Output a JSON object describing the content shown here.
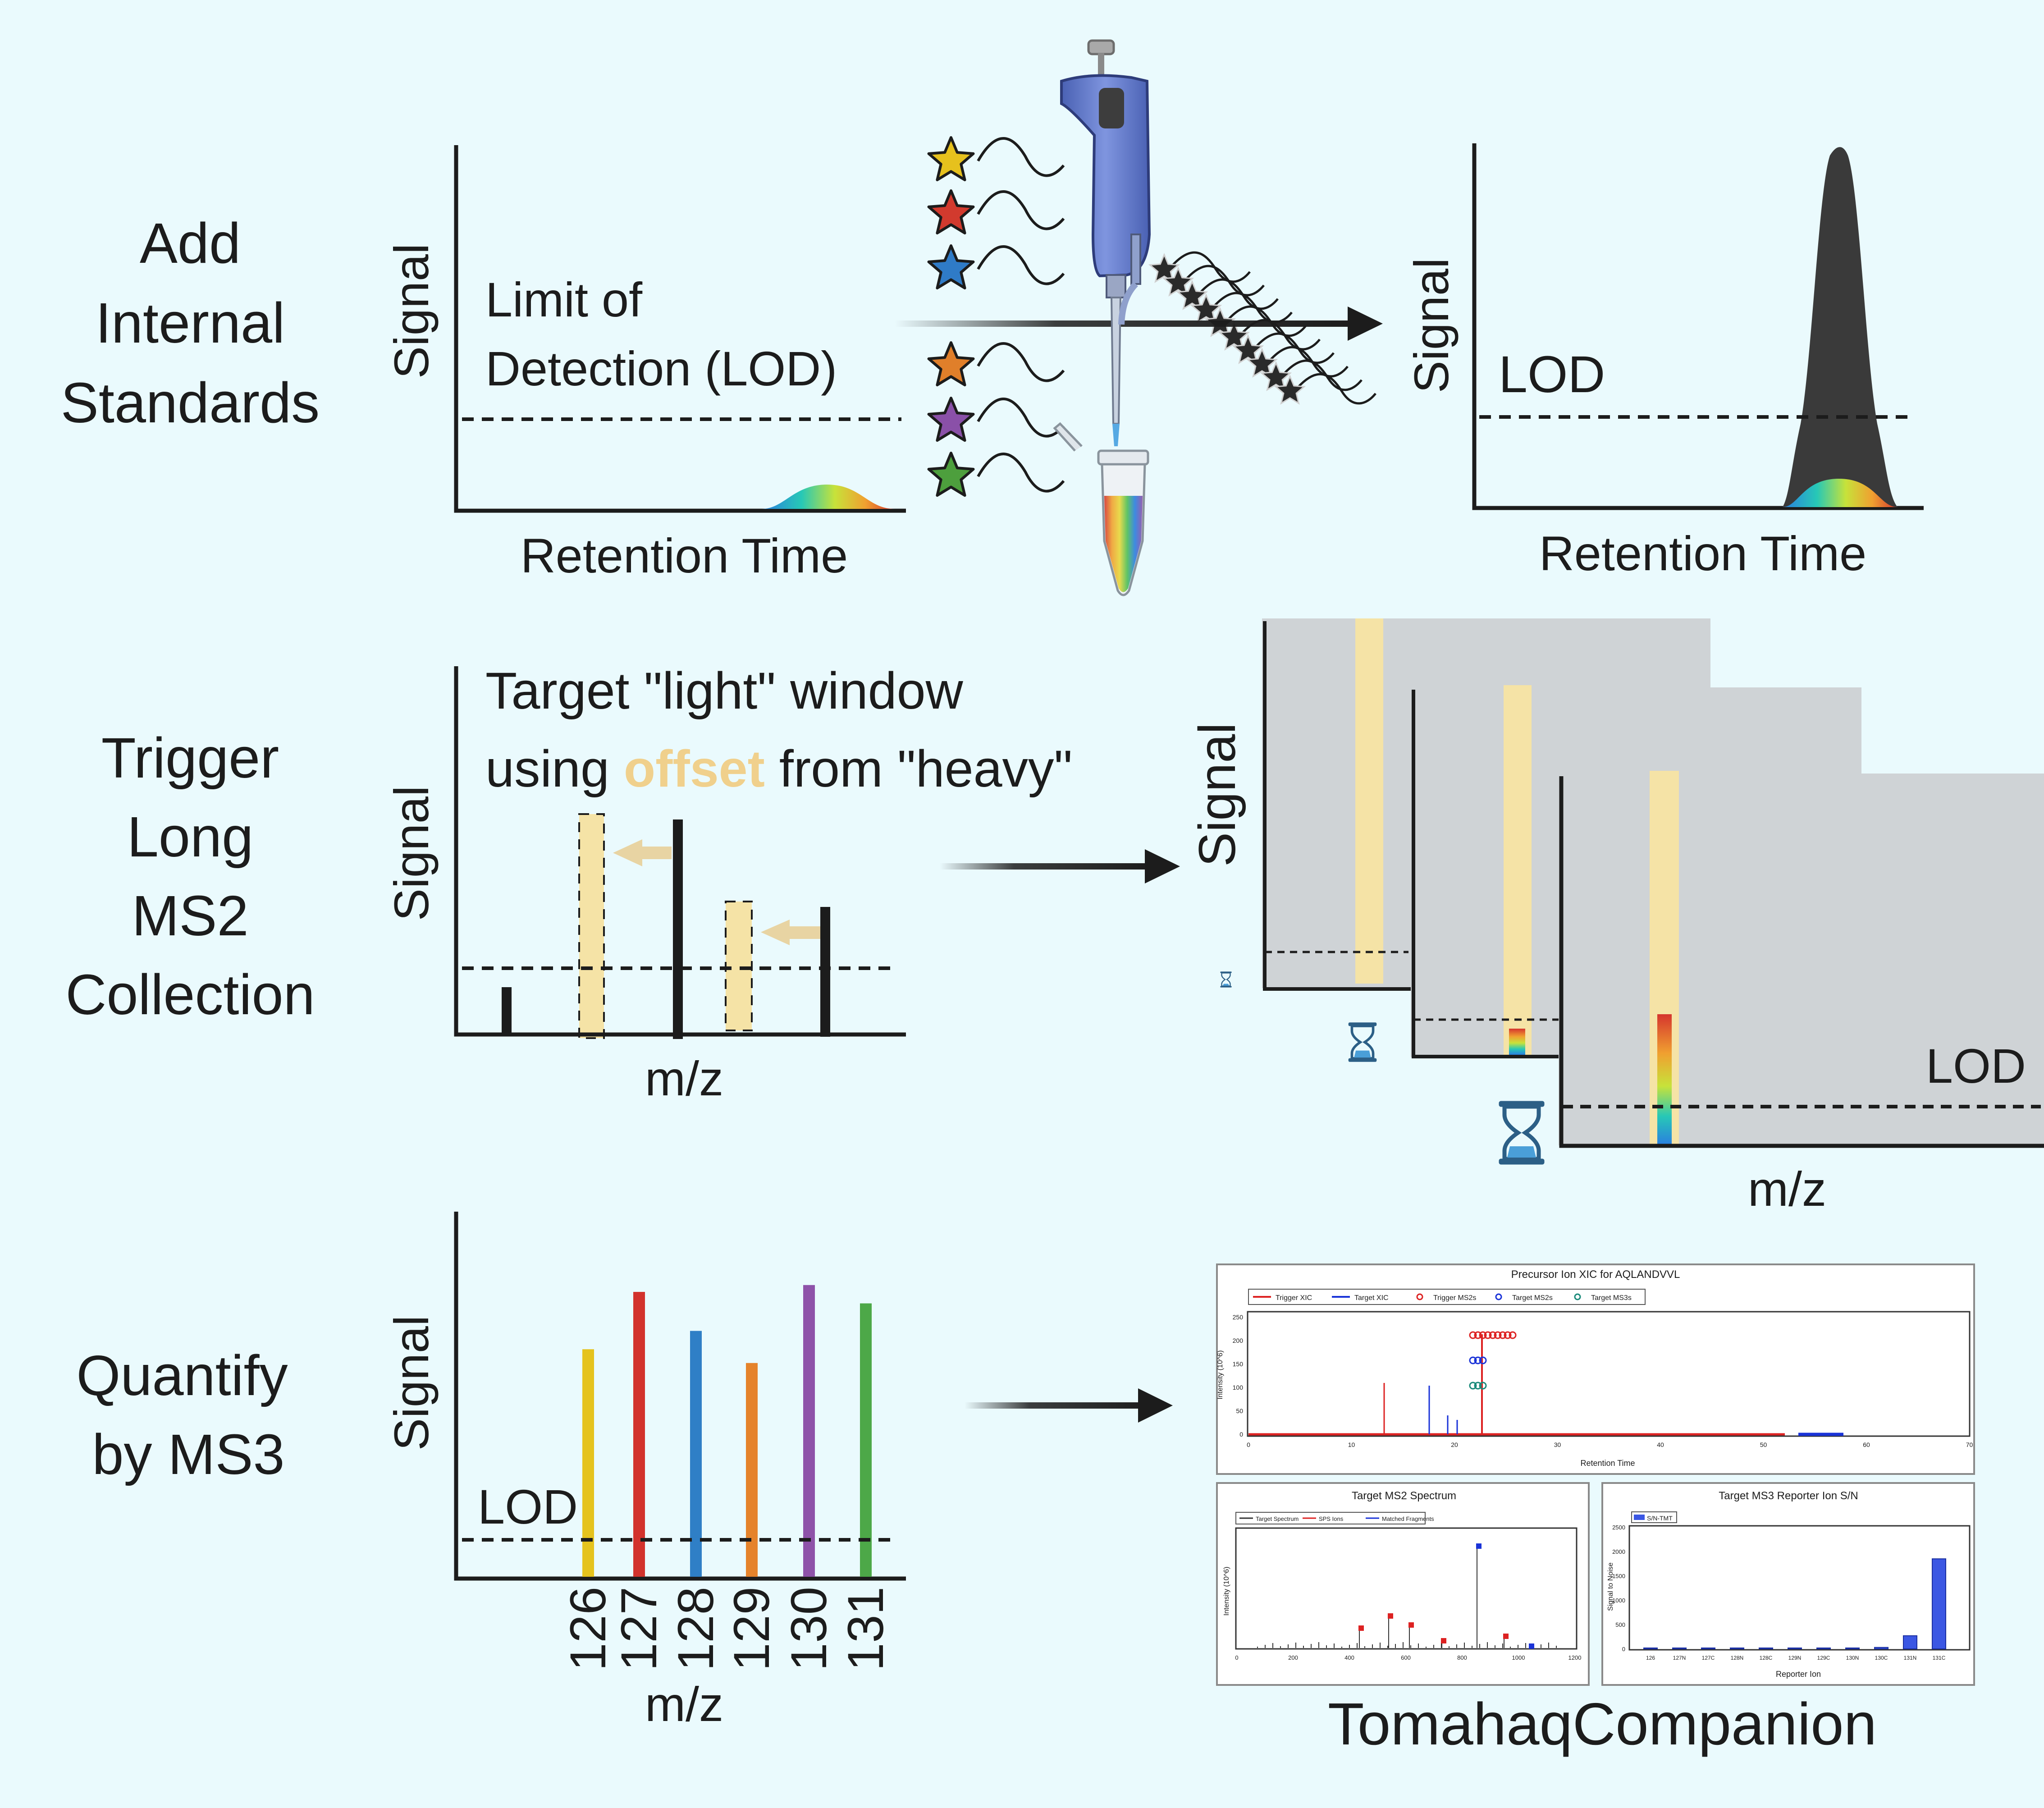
{
  "rows": {
    "add_standards": [
      "Add",
      "Internal",
      "Standards"
    ],
    "trigger_ms2": [
      "Trigger",
      "Long",
      "MS2",
      "Collection"
    ],
    "quantify_ms3": [
      "Quantify",
      "by MS3"
    ]
  },
  "axes": {
    "signal": "Signal",
    "retention_time": "Retention Time",
    "mz": "m/z"
  },
  "lod_labels": {
    "long": [
      "Limit of",
      "Detection (LOD)"
    ],
    "short": "LOD"
  },
  "target_note": {
    "line1": "Target \"light\" window",
    "line2_prefix": "using ",
    "line2_highlight": "offset",
    "line2_suffix": " from \"heavy\""
  },
  "reporter_channels": [
    "126",
    "127",
    "128",
    "129",
    "130",
    "131"
  ],
  "reporter_colors": [
    "#e5c31d",
    "#d2322c",
    "#2f7fc6",
    "#e5832b",
    "#8e52a9",
    "#4da848"
  ],
  "standard_star_colors": [
    "#e6c11d",
    "#d23a2e",
    "#2f7bc7",
    "#e07f2a",
    "#8a50a8",
    "#4d9f3d"
  ],
  "colors": {
    "background": "#eafafd",
    "axis": "#1c1c1c",
    "highlight": "#f5e3a6",
    "highlight_text": "#f0d08c",
    "panel_gray": "#cfd3d6",
    "hourglass": "#2c5f86"
  },
  "software": {
    "name": "TomahaqCompanion",
    "top_plot": {
      "title": "Precursor Ion XIC for AQLANDVVL",
      "legend": [
        "Trigger XIC",
        "Target XIC",
        "Trigger MS2s",
        "Target MS2s",
        "Target MS3s"
      ],
      "xlabel": "Retention Time",
      "ylabel": "Intensity (10^6)",
      "xticks": [
        "0",
        "10",
        "20",
        "30",
        "40",
        "50",
        "60",
        "70"
      ],
      "yticks": [
        "0",
        "50",
        "100",
        "150",
        "200",
        "250"
      ]
    },
    "ms2_plot": {
      "title": "Target MS2 Spectrum",
      "legend": [
        "Target Spectrum",
        "SPS Ions",
        "Matched Fragments"
      ],
      "ylabel": "Intensity (10^6)",
      "xticks": [
        "0",
        "200",
        "400",
        "600",
        "800",
        "1000",
        "1200"
      ]
    },
    "ms3_plot": {
      "title": "Target MS3 Reporter Ion S/N",
      "legend": [
        "S/N-TMT"
      ],
      "xlabel": "Reporter Ion",
      "ylabel": "Signal to Noise",
      "xticks": [
        "126",
        "127N",
        "127C",
        "128N",
        "128C",
        "129N",
        "129C",
        "130N",
        "130C",
        "131N",
        "131C"
      ],
      "yticks": [
        "0",
        "500",
        "1000",
        "1500",
        "2000",
        "2500"
      ]
    }
  },
  "chart_data": [
    {
      "type": "bar",
      "title": "Quantify by MS3",
      "categories": [
        "126",
        "127",
        "128",
        "129",
        "130",
        "131"
      ],
      "values": [
        100,
        125,
        108,
        94,
        128,
        120
      ],
      "xlabel": "m/z",
      "ylabel": "Signal",
      "ylim": [
        0,
        160
      ],
      "lod": 30
    },
    {
      "type": "bar",
      "title": "Target MS3 Reporter Ion S/N",
      "categories": [
        "126",
        "127N",
        "127C",
        "128N",
        "128C",
        "129N",
        "129C",
        "130N",
        "130C",
        "131N",
        "131C"
      ],
      "values": [
        3,
        1,
        1,
        2,
        1,
        5,
        6,
        8,
        30,
        270,
        1850
      ],
      "xlabel": "Reporter Ion",
      "ylabel": "Signal to Noise",
      "ylim": [
        0,
        2500
      ]
    }
  ]
}
